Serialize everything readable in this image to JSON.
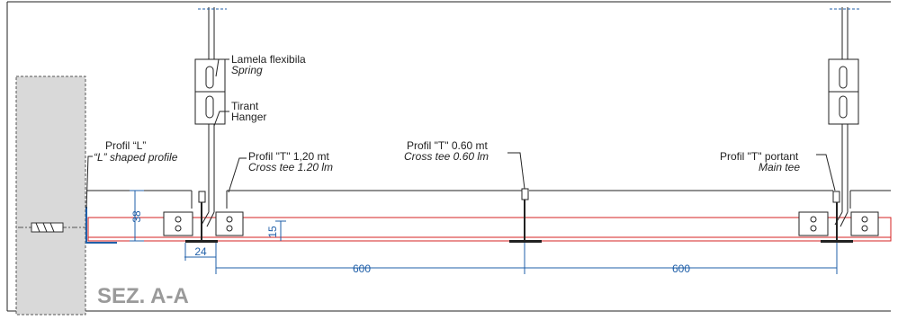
{
  "labels": [
    {
      "title": "Lamela flexibila",
      "subtitle": "Spring"
    },
    {
      "title": "Tirant",
      "subtitle": "Hanger"
    },
    {
      "title": "Profil “L”",
      "subtitle": "“L” shaped profile"
    },
    {
      "title": "Profil \"T\" 1,20 mt",
      "subtitle": "Cross tee 1.20 lm"
    },
    {
      "title": "Profil \"T\" 0.60 mt",
      "subtitle": "Cross tee 0.60 lm"
    },
    {
      "title": "Profil \"T\" portant",
      "subtitle": "Main tee"
    }
  ],
  "dimensions": [
    38,
    15,
    24,
    600,
    600
  ],
  "section": "SEZ. A-A"
}
